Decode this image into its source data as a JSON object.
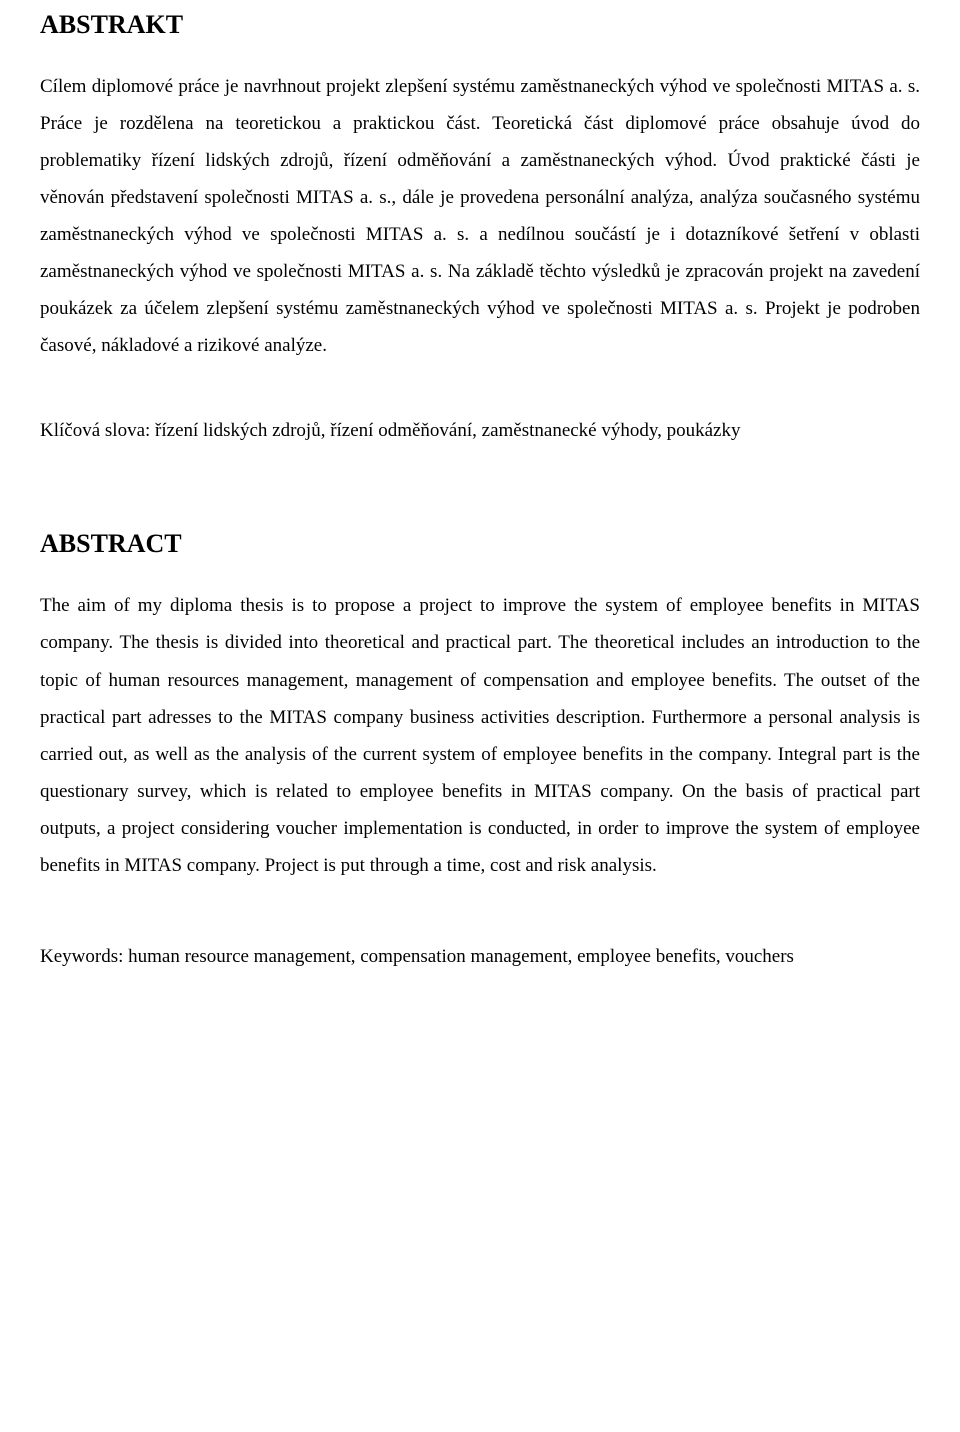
{
  "document": {
    "background_color": "#ffffff",
    "text_color": "#000000",
    "font_family": "Times New Roman",
    "section1": {
      "title": "ABSTRAKT",
      "body": "Cílem diplomové práce je navrhnout projekt zlepšení systému zaměstnaneckých výhod ve společnosti MITAS a. s. Práce je rozdělena na teoretickou a praktickou část. Teoretická část diplomové práce obsahuje úvod do problematiky řízení lidských zdrojů, řízení odměňování a zaměstnaneckých výhod. Úvod praktické části je věnován představení společnosti MITAS a. s., dále je provedena personální analýza, analýza současného systému zaměstnaneckých výhod ve společnosti MITAS a. s. a nedílnou součástí je i dotazníkové šetření v oblasti zaměstnaneckých výhod ve společnosti MITAS a. s. Na základě těchto výsledků je zpracován projekt na zavedení poukázek za účelem zlepšení systému zaměstnaneckých výhod ve společnosti MITAS a. s. Projekt je podroben časové, nákladové a rizikové analýze.",
      "keywords": "Klíčová slova: řízení lidských zdrojů, řízení odměňování, zaměstnanecké výhody, poukázky"
    },
    "section2": {
      "title": "ABSTRACT",
      "body": "The aim of my diploma thesis is to propose a project to improve the system of employee benefits in MITAS company. The thesis is divided into theoretical and practical part. The theoretical includes an introduction to the topic of human resources management, management of compensation and employee benefits. The outset of the practical part adresses to the MITAS company business activities description. Furthermore a personal analysis is carried out, as well as the analysis of the current system of employee benefits in the company. Integral part is the questionary survey, which is related to employee benefits in MITAS company. On the basis of practical part outputs, a project considering voucher implementation is conducted, in order to improve the system of employee benefits in MITAS company. Project is put through a time, cost and risk analysis.",
      "keywords": "Keywords: human resource management, compensation management, employee benefits, vouchers"
    }
  }
}
